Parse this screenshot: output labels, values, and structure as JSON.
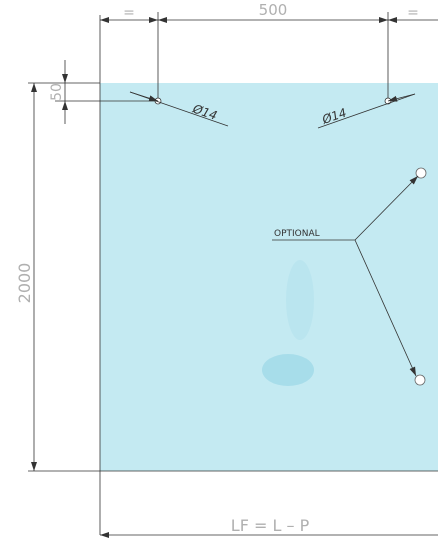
{
  "drawing": {
    "panel_color": "#c4eaf2",
    "line_color": "#333333",
    "dimension_text_color": "#b0b0b0",
    "labels": {
      "top_left_equal": "=",
      "top_width": "500",
      "top_right_equal": "=",
      "left_offset": "50",
      "left_height": "2000",
      "hole_left": "Ø14",
      "hole_right": "Ø14",
      "optional": "OPTIONAL",
      "bottom_formula": "LF = L – P"
    }
  }
}
